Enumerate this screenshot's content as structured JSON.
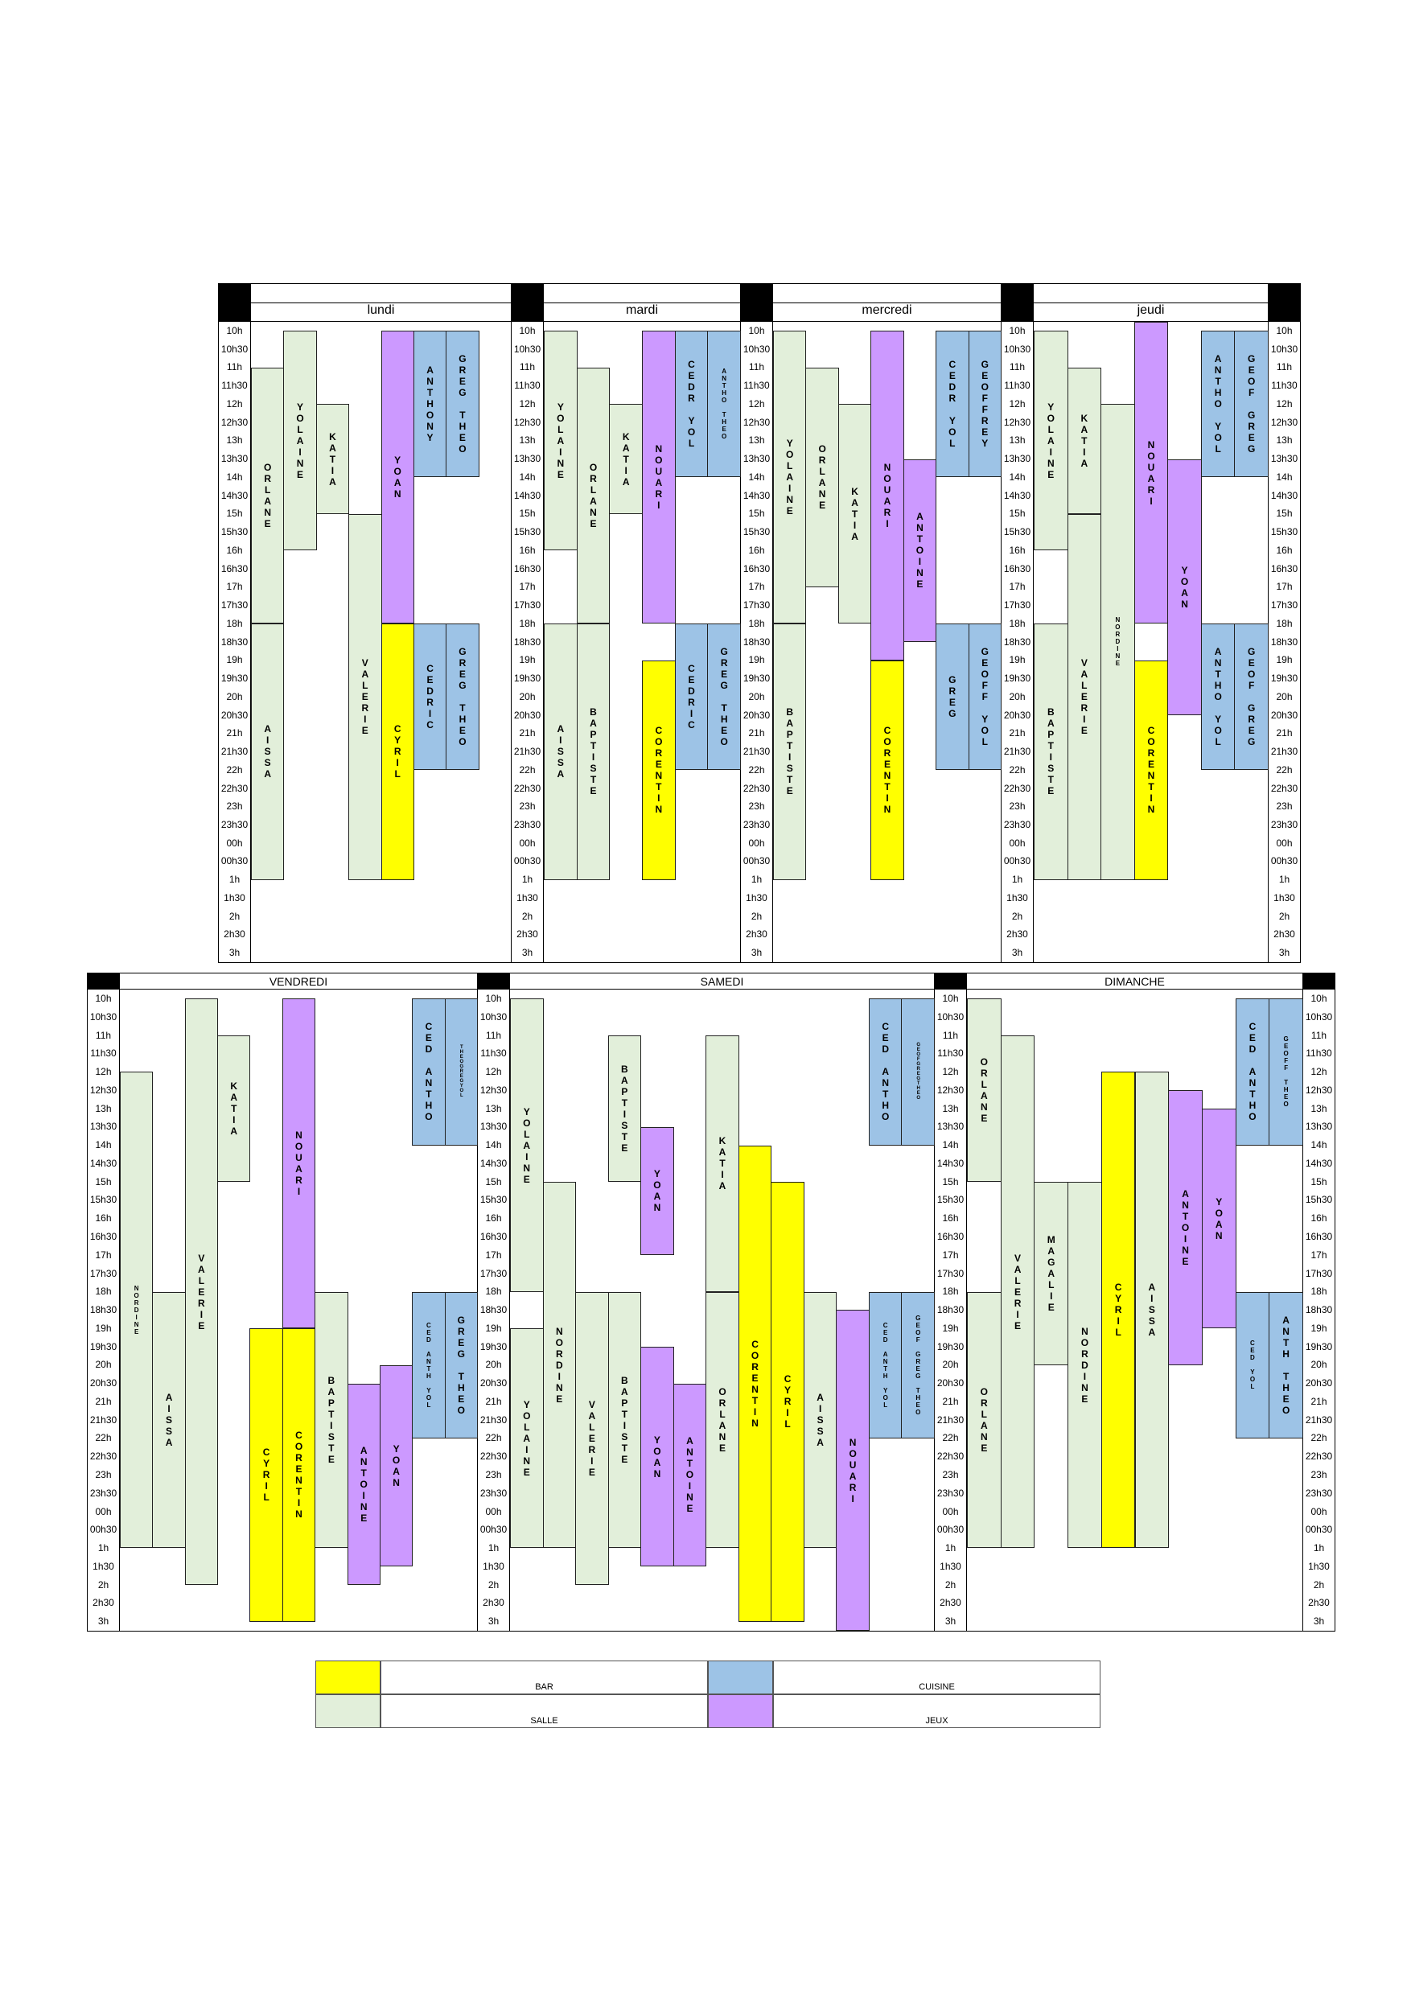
{
  "times": [
    "10h",
    "10h30",
    "11h",
    "11h30",
    "12h",
    "12h30",
    "13h",
    "13h30",
    "14h",
    "14h30",
    "15h",
    "15h30",
    "16h",
    "16h30",
    "17h",
    "17h30",
    "18h",
    "18h30",
    "19h",
    "19h30",
    "20h",
    "20h30",
    "21h",
    "21h30",
    "22h",
    "22h30",
    "23h",
    "23h30",
    "00h",
    "00h30",
    "1h",
    "1h30",
    "2h",
    "2h30",
    "3h"
  ],
  "colors": {
    "bar": "#ffff00",
    "cuisine": "#9dc3e6",
    "salle": "#e2efda",
    "jeux": "#cc99ff"
  },
  "days": [
    {
      "name": "lundi",
      "columns": 8,
      "blocks": [
        [
          "ORLANE",
          "salle",
          0,
          11,
          18
        ],
        [
          "AISSA",
          "salle",
          0,
          18,
          25
        ],
        [
          "YOLAINE",
          "salle",
          1,
          10,
          16
        ],
        [
          "KATIA",
          "salle",
          2,
          12,
          15
        ],
        [
          "VALERIE",
          "salle",
          3,
          15,
          25
        ],
        [
          "YOAN",
          "jeux",
          4,
          10,
          18
        ],
        [
          "CYRIL",
          "bar",
          4,
          18,
          25
        ],
        [
          "ANTHONY",
          "cuisine",
          5,
          10,
          14
        ],
        [
          "GREG THEO",
          "cuisine",
          6,
          10,
          14
        ],
        [
          "CEDRIC",
          "cuisine",
          5,
          18,
          22
        ],
        [
          "GREG THEO",
          "cuisine",
          6,
          18,
          22
        ]
      ]
    },
    {
      "name": "mardi",
      "columns": 6,
      "blocks": [
        [
          "YOLAINE",
          "salle",
          0,
          10,
          16
        ],
        [
          "AISSA",
          "salle",
          0,
          18,
          25
        ],
        [
          "ORLANE",
          "salle",
          1,
          11,
          18
        ],
        [
          "BAPTISTE",
          "salle",
          1,
          18,
          25
        ],
        [
          "KATIA",
          "salle",
          2,
          12,
          15
        ],
        [
          "NOUARI",
          "jeux",
          3,
          10,
          18
        ],
        [
          "CORENTIN",
          "bar",
          3,
          19,
          25
        ],
        [
          "CEDR YOL",
          "cuisine",
          4,
          10,
          14
        ],
        [
          "ANTHO THEO",
          "cuisine",
          5,
          10,
          14,
          "small"
        ],
        [
          "CEDRIC",
          "cuisine",
          4,
          18,
          22
        ],
        [
          "GREG THEO",
          "cuisine",
          5,
          18,
          22
        ]
      ]
    },
    {
      "name": "mercredi",
      "columns": 7,
      "blocks": [
        [
          "YOLAINE",
          "salle",
          0,
          10,
          18
        ],
        [
          "BAPTISTE",
          "salle",
          0,
          18,
          25
        ],
        [
          "ORLANE",
          "salle",
          1,
          11,
          17
        ],
        [
          "KATIA",
          "salle",
          2,
          12,
          18
        ],
        [
          "NOUARI",
          "jeux",
          3,
          10,
          19
        ],
        [
          "CORENTIN",
          "bar",
          3,
          19,
          25
        ],
        [
          "ANTOINE",
          "jeux",
          4,
          13.5,
          18.5
        ],
        [
          "CEDR YOL",
          "cuisine",
          5,
          10,
          14
        ],
        [
          "GEOFFREY",
          "cuisine",
          6,
          10,
          14
        ],
        [
          "GREG",
          "cuisine",
          5,
          18,
          22
        ],
        [
          "GEOFF YOL",
          "cuisine",
          6,
          18,
          22
        ]
      ]
    },
    {
      "name": "jeudi",
      "columns": 7,
      "blocks": [
        [
          "YOLAINE",
          "salle",
          0,
          10,
          16
        ],
        [
          "BAPTISTE",
          "salle",
          0,
          18,
          25
        ],
        [
          "KATIA",
          "salle",
          1,
          11,
          15
        ],
        [
          "VALERIE",
          "salle",
          1,
          15,
          25
        ],
        [
          "NORDINE",
          "salle",
          2,
          12,
          25,
          "small"
        ],
        [
          "NOUARI",
          "jeux",
          3,
          9.75,
          18
        ],
        [
          "CORENTIN",
          "bar",
          3,
          19,
          25
        ],
        [
          "YOAN",
          "jeux",
          4,
          13.5,
          20.5
        ],
        [
          "ANTHO YOL",
          "cuisine",
          5,
          10,
          14
        ],
        [
          "GEOF GREG",
          "cuisine",
          6,
          10,
          14
        ],
        [
          "ANTHO YOL",
          "cuisine",
          5,
          18,
          22
        ],
        [
          "GEOF GREG",
          "cuisine",
          6,
          18,
          22
        ]
      ]
    },
    {
      "name": "VENDREDI",
      "columns": 11,
      "blocks": [
        [
          "NORDINE",
          "salle",
          0,
          12,
          25,
          "small"
        ],
        [
          "AISSA",
          "salle",
          1,
          18,
          25
        ],
        [
          "VALERIE",
          "salle",
          2,
          10,
          26
        ],
        [
          "KATIA",
          "salle",
          3,
          11,
          15
        ],
        [
          "CYRIL",
          "bar",
          4,
          19,
          27
        ],
        [
          "NOUARI",
          "jeux",
          5,
          10,
          19
        ],
        [
          "CORENTIN",
          "bar",
          5,
          19,
          27
        ],
        [
          "BAPTISTE",
          "salle",
          6,
          18,
          25
        ],
        [
          "ANTOINE",
          "jeux",
          7,
          20.5,
          26
        ],
        [
          "YOAN",
          "jeux",
          8,
          20,
          25.5
        ],
        [
          "CED ANTHO",
          "cuisine",
          9,
          10,
          14
        ],
        [
          "THEOGREGYOL",
          "cuisine",
          10,
          10,
          14,
          "tiny"
        ],
        [
          "CED ANTH YOL",
          "cuisine",
          9,
          18,
          22,
          "small"
        ],
        [
          "GREG THEO",
          "cuisine",
          10,
          18,
          22
        ]
      ]
    },
    {
      "name": "SAMEDI",
      "columns": 13,
      "blocks": [
        [
          "YOLAINE",
          "salle",
          0,
          10,
          18
        ],
        [
          "YOLAINE",
          "salle",
          0,
          19,
          25
        ],
        [
          "NORDINE",
          "salle",
          1,
          15,
          25
        ],
        [
          "VALERIE",
          "salle",
          2,
          18,
          26
        ],
        [
          "BAPTISTE",
          "salle",
          3,
          11,
          15
        ],
        [
          "BAPTISTE",
          "salle",
          3,
          18,
          25
        ],
        [
          "YOAN",
          "jeux",
          4,
          13.5,
          17
        ],
        [
          "YOAN",
          "jeux",
          4,
          19.5,
          25.5
        ],
        [
          "ANTOINE",
          "jeux",
          5,
          20.5,
          25.5
        ],
        [
          "KATIA",
          "salle",
          6,
          11,
          18
        ],
        [
          "ORLANE",
          "salle",
          6,
          18,
          25
        ],
        [
          "CORENTIN",
          "bar",
          7,
          14,
          27
        ],
        [
          "CYRIL",
          "bar",
          8,
          15,
          27
        ],
        [
          "AISSA",
          "salle",
          9,
          18,
          25
        ],
        [
          "NOUARI",
          "jeux",
          10,
          18.5,
          27.25
        ],
        [
          "CED ANTHO",
          "cuisine",
          11,
          10,
          14
        ],
        [
          "GEOFGREGTHEO",
          "cuisine",
          12,
          10,
          14,
          "tiny"
        ],
        [
          "CED ANTH YOL",
          "cuisine",
          11,
          18,
          22,
          "small"
        ],
        [
          "GEOF GREG THEO",
          "cuisine",
          12,
          18,
          22,
          "small"
        ]
      ]
    },
    {
      "name": "DIMANCHE",
      "columns": 10,
      "blocks": [
        [
          "ORLANE",
          "salle",
          0,
          10,
          15
        ],
        [
          "ORLANE",
          "salle",
          0,
          18,
          25
        ],
        [
          "VALERIE",
          "salle",
          1,
          11,
          25
        ],
        [
          "MAGALIE",
          "salle",
          2,
          15,
          20
        ],
        [
          "NORDINE",
          "salle",
          3,
          15,
          25
        ],
        [
          "CYRIL",
          "bar",
          4,
          12,
          25
        ],
        [
          "AISSA",
          "salle",
          5,
          12,
          25
        ],
        [
          "ANTOINE",
          "jeux",
          6,
          12.5,
          20
        ],
        [
          "YOAN",
          "jeux",
          7,
          13,
          19
        ],
        [
          "CED ANTHO",
          "cuisine",
          8,
          10,
          14
        ],
        [
          "GEOFF THEO",
          "cuisine",
          9,
          10,
          14,
          "small"
        ],
        [
          "CED YOL",
          "cuisine",
          8,
          18,
          22,
          "small"
        ],
        [
          "ANTH THEO",
          "cuisine",
          9,
          18,
          22
        ]
      ]
    }
  ],
  "legend": [
    {
      "label": "BAR",
      "type": "bar"
    },
    {
      "label": "CUISINE",
      "type": "cuisine"
    },
    {
      "label": "SALLE",
      "type": "salle"
    },
    {
      "label": "JEUX",
      "type": "jeux"
    }
  ]
}
